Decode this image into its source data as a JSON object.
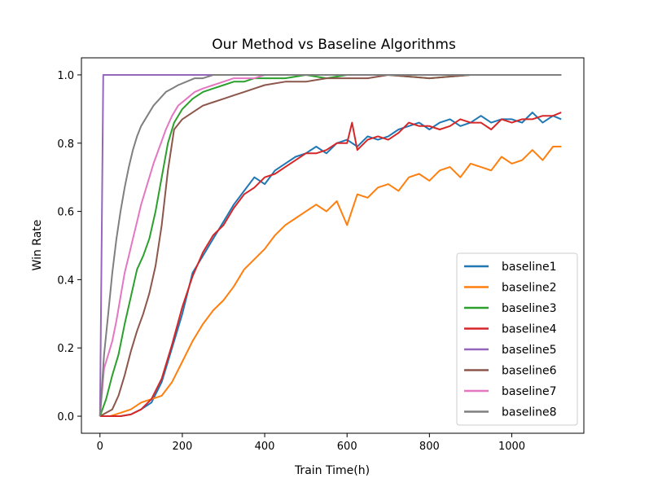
{
  "chart_data": {
    "type": "line",
    "title": "Our Method vs Baseline Algorithms",
    "xlabel": "Train Time(h)",
    "ylabel": "Win Rate",
    "xlim": [
      -45,
      1175
    ],
    "ylim": [
      -0.05,
      1.05
    ],
    "xticks": [
      0,
      200,
      400,
      600,
      800,
      1000
    ],
    "yticks": [
      0.0,
      0.2,
      0.4,
      0.6,
      0.8,
      1.0
    ],
    "xtick_labels": [
      "0",
      "200",
      "400",
      "600",
      "800",
      "1000"
    ],
    "ytick_labels": [
      "0.0",
      "0.2",
      "0.4",
      "0.6",
      "0.8",
      "1.0"
    ],
    "legend_position": "lower-right",
    "grid": false,
    "series": [
      {
        "name": "baseline1",
        "color": "#1f77b4",
        "x": [
          0,
          25,
          50,
          75,
          100,
          125,
          150,
          175,
          200,
          225,
          250,
          275,
          300,
          325,
          350,
          375,
          400,
          425,
          450,
          475,
          500,
          525,
          550,
          575,
          600,
          625,
          650,
          675,
          700,
          725,
          750,
          775,
          800,
          825,
          850,
          875,
          900,
          925,
          950,
          975,
          1000,
          1025,
          1050,
          1075,
          1100,
          1120
        ],
        "y": [
          0,
          0,
          0,
          0.005,
          0.02,
          0.04,
          0.1,
          0.2,
          0.3,
          0.42,
          0.47,
          0.52,
          0.57,
          0.62,
          0.66,
          0.7,
          0.68,
          0.72,
          0.74,
          0.76,
          0.77,
          0.79,
          0.77,
          0.8,
          0.81,
          0.79,
          0.82,
          0.81,
          0.82,
          0.84,
          0.85,
          0.86,
          0.84,
          0.86,
          0.87,
          0.85,
          0.86,
          0.88,
          0.86,
          0.87,
          0.87,
          0.86,
          0.89,
          0.86,
          0.88,
          0.87
        ]
      },
      {
        "name": "baseline2",
        "color": "#ff7f0e",
        "x": [
          0,
          25,
          50,
          75,
          100,
          125,
          150,
          175,
          200,
          225,
          250,
          275,
          300,
          325,
          350,
          375,
          400,
          425,
          450,
          475,
          500,
          525,
          550,
          575,
          600,
          625,
          650,
          675,
          700,
          725,
          750,
          775,
          800,
          825,
          850,
          875,
          900,
          925,
          950,
          975,
          1000,
          1025,
          1050,
          1075,
          1100,
          1120
        ],
        "y": [
          0,
          0,
          0.01,
          0.02,
          0.04,
          0.05,
          0.06,
          0.1,
          0.16,
          0.22,
          0.27,
          0.31,
          0.34,
          0.38,
          0.43,
          0.46,
          0.49,
          0.53,
          0.56,
          0.58,
          0.6,
          0.62,
          0.6,
          0.63,
          0.56,
          0.65,
          0.64,
          0.67,
          0.68,
          0.66,
          0.7,
          0.71,
          0.69,
          0.72,
          0.73,
          0.7,
          0.74,
          0.73,
          0.72,
          0.76,
          0.74,
          0.75,
          0.78,
          0.75,
          0.79,
          0.79
        ]
      },
      {
        "name": "baseline3",
        "color": "#2ca02c",
        "x": [
          0,
          15,
          30,
          45,
          60,
          75,
          90,
          105,
          120,
          135,
          150,
          165,
          180,
          200,
          225,
          250,
          275,
          300,
          325,
          350,
          375,
          400,
          450,
          500,
          550,
          600,
          700,
          800,
          900,
          1000,
          1120
        ],
        "y": [
          0,
          0.05,
          0.12,
          0.18,
          0.27,
          0.35,
          0.43,
          0.47,
          0.52,
          0.6,
          0.7,
          0.8,
          0.86,
          0.9,
          0.93,
          0.95,
          0.96,
          0.97,
          0.98,
          0.98,
          0.99,
          0.99,
          0.99,
          1.0,
          0.99,
          1.0,
          1.0,
          0.99,
          1.0,
          1.0,
          1.0
        ]
      },
      {
        "name": "baseline4",
        "color": "#d62728",
        "x": [
          0,
          25,
          50,
          75,
          100,
          125,
          150,
          175,
          200,
          225,
          250,
          275,
          300,
          325,
          350,
          375,
          400,
          425,
          450,
          475,
          500,
          525,
          550,
          575,
          600,
          612,
          625,
          650,
          675,
          700,
          725,
          750,
          775,
          800,
          825,
          850,
          875,
          900,
          925,
          950,
          975,
          1000,
          1025,
          1050,
          1075,
          1100,
          1120
        ],
        "y": [
          0,
          0,
          0,
          0.005,
          0.02,
          0.05,
          0.11,
          0.21,
          0.32,
          0.41,
          0.48,
          0.53,
          0.56,
          0.61,
          0.65,
          0.67,
          0.7,
          0.71,
          0.73,
          0.75,
          0.77,
          0.77,
          0.78,
          0.8,
          0.8,
          0.86,
          0.78,
          0.81,
          0.82,
          0.81,
          0.83,
          0.86,
          0.85,
          0.85,
          0.84,
          0.85,
          0.87,
          0.86,
          0.86,
          0.84,
          0.87,
          0.86,
          0.87,
          0.87,
          0.88,
          0.88,
          0.89
        ]
      },
      {
        "name": "baseline5",
        "color": "#9467bd",
        "x": [
          0,
          8,
          20,
          100,
          400,
          800,
          1120
        ],
        "y": [
          0,
          1.0,
          1.0,
          1.0,
          1.0,
          1.0,
          1.0
        ]
      },
      {
        "name": "baseline6",
        "color": "#8c564b",
        "x": [
          0,
          15,
          30,
          45,
          60,
          75,
          90,
          105,
          120,
          135,
          150,
          165,
          180,
          200,
          225,
          250,
          275,
          300,
          325,
          350,
          375,
          400,
          450,
          500,
          550,
          600,
          650,
          700,
          800,
          900,
          1000,
          1120
        ],
        "y": [
          0,
          0.01,
          0.02,
          0.06,
          0.12,
          0.19,
          0.25,
          0.3,
          0.36,
          0.44,
          0.56,
          0.72,
          0.84,
          0.87,
          0.89,
          0.91,
          0.92,
          0.93,
          0.94,
          0.95,
          0.96,
          0.97,
          0.98,
          0.98,
          0.99,
          0.99,
          0.99,
          1.0,
          0.99,
          1.0,
          1.0,
          1.0
        ]
      },
      {
        "name": "baseline7",
        "color": "#e377c2",
        "x": [
          0,
          10,
          20,
          30,
          40,
          50,
          60,
          70,
          80,
          90,
          100,
          115,
          130,
          145,
          160,
          175,
          190,
          210,
          230,
          250,
          275,
          300,
          325,
          350,
          375,
          400,
          450,
          500,
          600,
          700,
          800,
          1000,
          1120
        ],
        "y": [
          0,
          0.14,
          0.18,
          0.22,
          0.28,
          0.35,
          0.42,
          0.47,
          0.52,
          0.57,
          0.62,
          0.68,
          0.74,
          0.79,
          0.84,
          0.88,
          0.91,
          0.93,
          0.95,
          0.96,
          0.97,
          0.98,
          0.99,
          0.99,
          0.99,
          1.0,
          1.0,
          1.0,
          1.0,
          1.0,
          1.0,
          1.0,
          1.0
        ]
      },
      {
        "name": "baseline8",
        "color": "#7f7f7f",
        "x": [
          0,
          10,
          20,
          30,
          40,
          50,
          60,
          70,
          80,
          90,
          100,
          115,
          130,
          145,
          160,
          175,
          190,
          210,
          230,
          250,
          275,
          300,
          350,
          400,
          500,
          600,
          800,
          1000,
          1120
        ],
        "y": [
          0,
          0.18,
          0.3,
          0.42,
          0.52,
          0.6,
          0.67,
          0.73,
          0.78,
          0.82,
          0.85,
          0.88,
          0.91,
          0.93,
          0.95,
          0.96,
          0.97,
          0.98,
          0.99,
          0.99,
          1.0,
          1.0,
          1.0,
          1.0,
          1.0,
          1.0,
          1.0,
          1.0,
          1.0
        ]
      }
    ]
  }
}
